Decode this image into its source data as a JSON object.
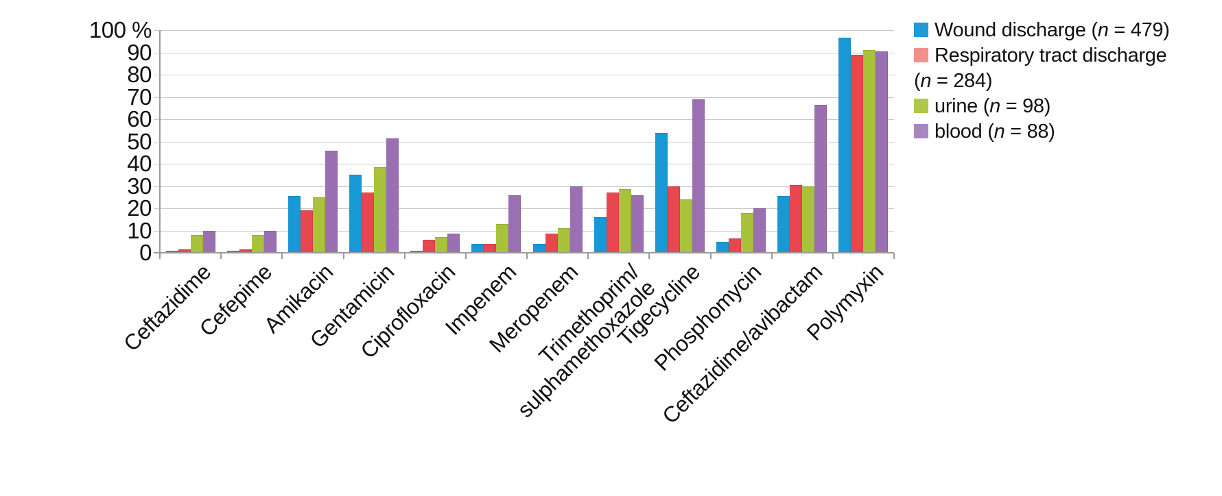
{
  "chart_data": {
    "type": "bar",
    "title": "",
    "unit": "%",
    "categories": [
      "Ceftazidime",
      "Cefepime",
      "Amikacin",
      "Gentamicin",
      "Ciprofloxacin",
      "Impenem",
      "Meropenem",
      "Trimethoprim/\nsulphamethoxazole",
      "Tigecycline",
      "Phosphomycin",
      "Ceftazidime/avibactam",
      "Polymyxin"
    ],
    "series": [
      {
        "key": "wound-discharge",
        "name": "Wound discharge (n = 479)",
        "color": "#1899D6",
        "values": [
          1,
          1,
          25.5,
          35,
          1,
          4,
          4,
          16,
          54,
          5,
          25.5,
          96.5
        ]
      },
      {
        "key": "respiratory-tract-discharge",
        "name": "Respiratory tract discharge (n = 284)",
        "color": "#E8474F",
        "values": [
          1.5,
          1.5,
          19,
          27,
          6,
          4,
          8.5,
          27,
          30,
          6.5,
          30.5,
          89
        ]
      },
      {
        "key": "urine",
        "name": "urine (n = 98)",
        "color": "#A9C23C",
        "values": [
          8,
          8,
          25,
          38.5,
          7,
          13,
          11,
          28.5,
          24,
          18,
          30,
          91
        ]
      },
      {
        "key": "blood",
        "name": "blood (n = 88)",
        "color": "#9B70B2",
        "values": [
          10,
          10,
          46,
          51.5,
          8.5,
          26,
          30,
          26,
          69,
          20,
          66.5,
          90.5
        ]
      }
    ],
    "ylim": [
      0,
      100
    ],
    "yticks": [
      0,
      10,
      20,
      30,
      40,
      50,
      60,
      70,
      80,
      90,
      100
    ],
    "ytick_top_label": "100 %",
    "grid": true,
    "legend_position": "right"
  },
  "legend": {
    "entries": [
      {
        "key": "wound-discharge",
        "swatch": "#1E9AD6",
        "parts": [
          {
            "t": "Wound discharge ("
          },
          {
            "t": "n",
            "i": true
          },
          {
            "t": " = 479)"
          }
        ]
      },
      {
        "key": "respiratory-tract-discharge",
        "swatch": "#F0918C",
        "parts": [
          {
            "t": "Respiratory tract discharge\n("
          },
          {
            "t": "n",
            "i": true
          },
          {
            "t": " = 284)"
          }
        ]
      },
      {
        "key": "urine",
        "swatch": "#AFC845",
        "parts": [
          {
            "t": "urine ("
          },
          {
            "t": "n",
            "i": true
          },
          {
            "t": " = 98)"
          }
        ]
      },
      {
        "key": "blood",
        "swatch": "#A687C1",
        "parts": [
          {
            "t": "blood ("
          },
          {
            "t": "n",
            "i": true
          },
          {
            "t": " = 88)"
          }
        ]
      }
    ]
  }
}
